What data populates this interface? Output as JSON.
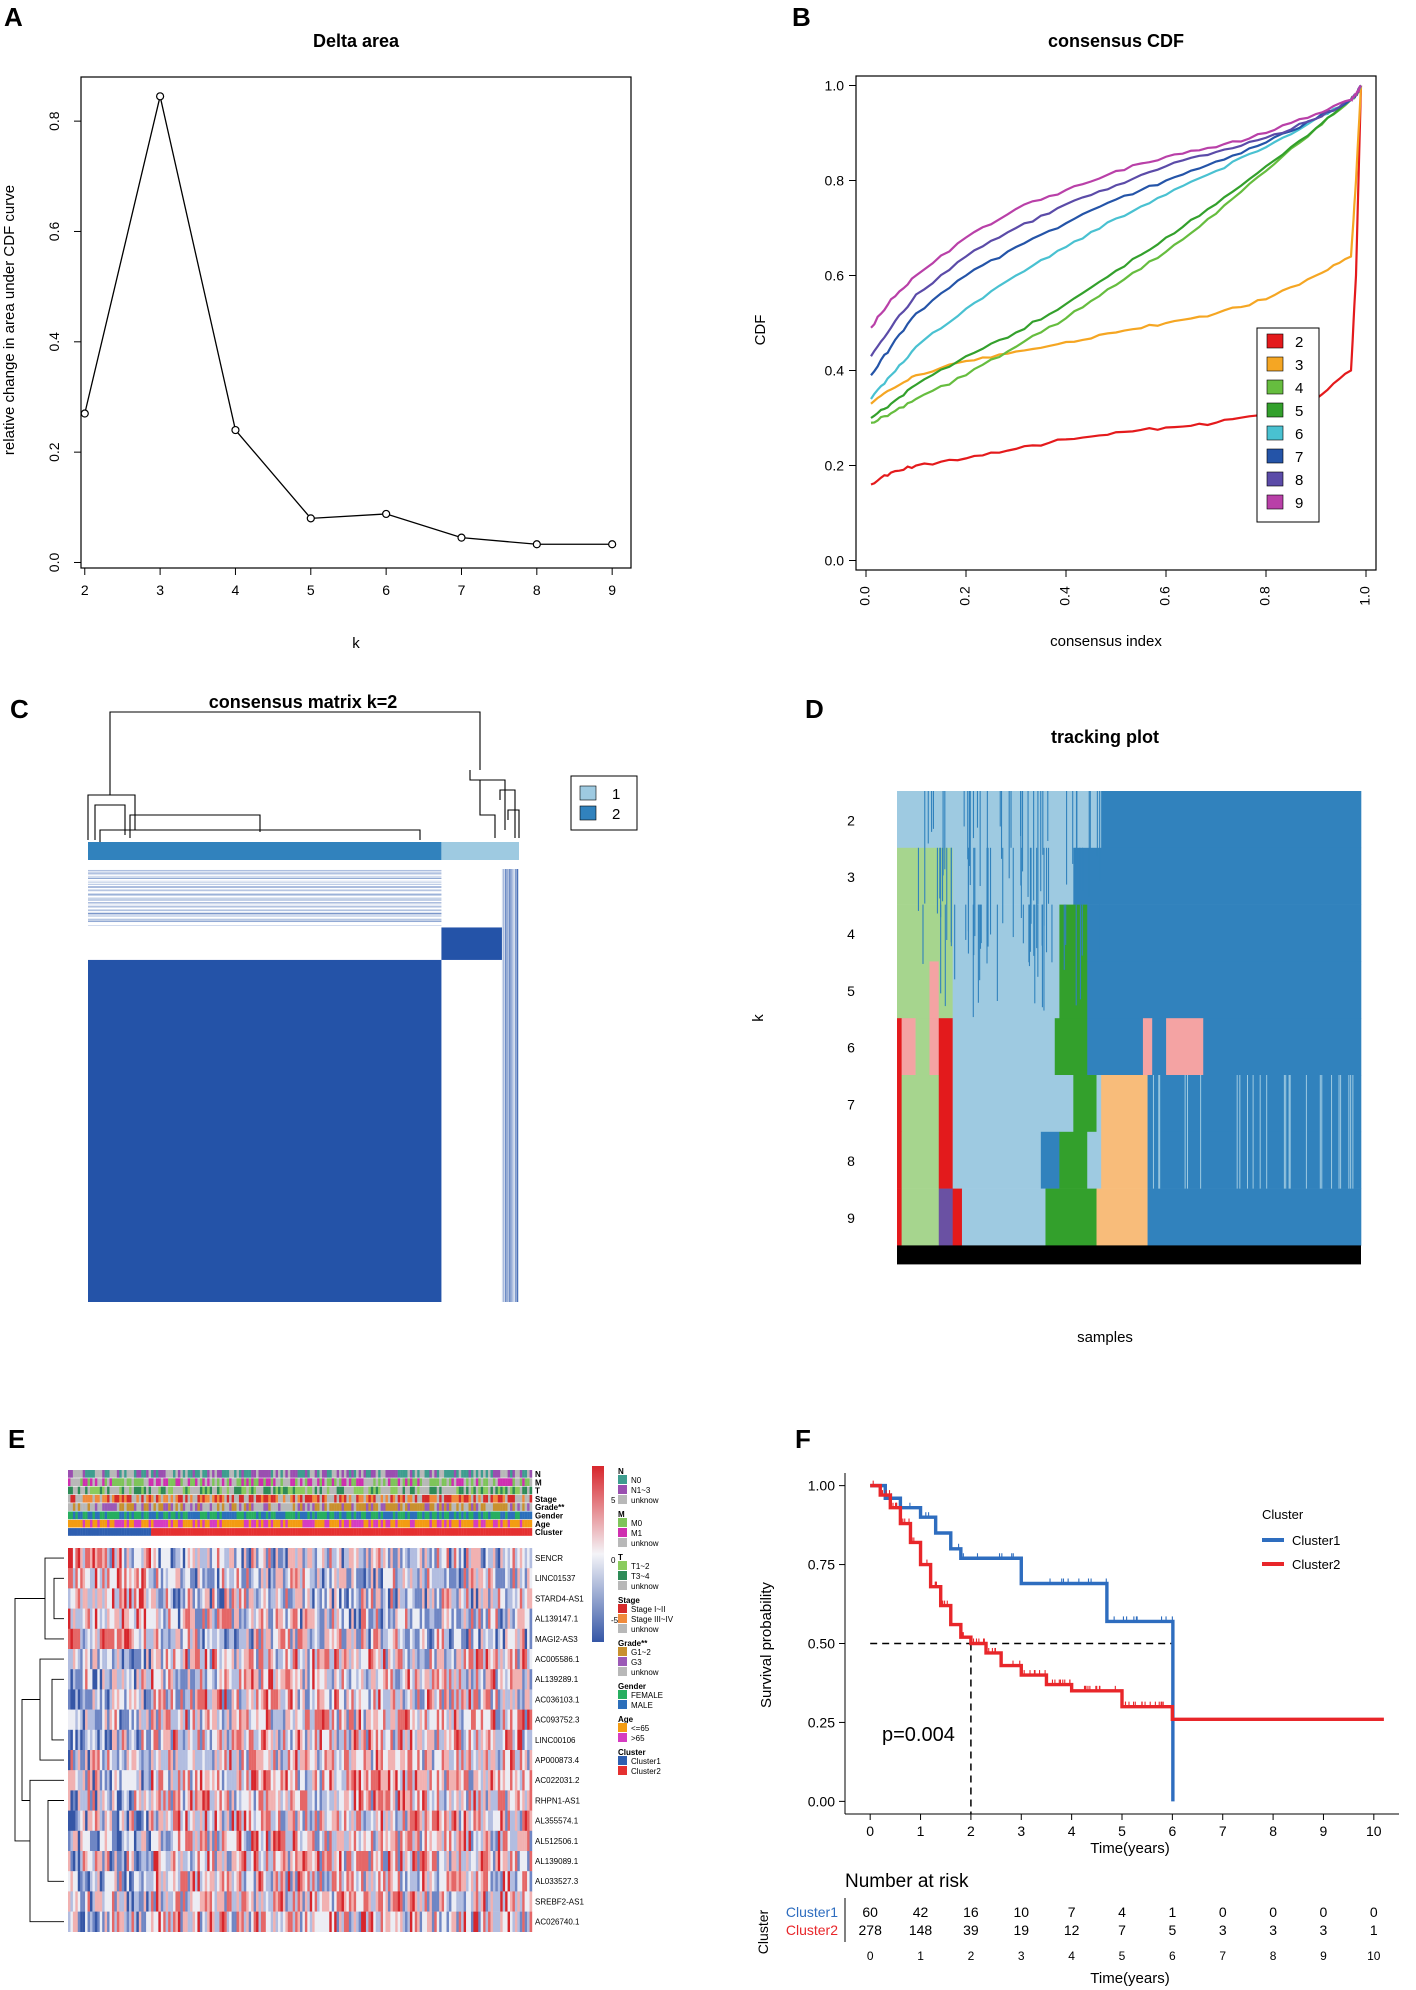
{
  "panel_letters": [
    "A",
    "B",
    "C",
    "D",
    "E",
    "F"
  ],
  "chart_data": [
    {
      "panel": "A",
      "type": "line",
      "title": "Delta area",
      "xlabel": "k",
      "ylabel": "relative change in area under CDF curve",
      "x": [
        2,
        3,
        4,
        5,
        6,
        7,
        8,
        9
      ],
      "values": [
        0.27,
        0.845,
        0.24,
        0.08,
        0.088,
        0.045,
        0.033,
        0.033
      ],
      "xticks": [
        "2",
        "3",
        "4",
        "5",
        "6",
        "7",
        "8",
        "9"
      ],
      "yticks": [
        "0.0",
        "0.2",
        "0.4",
        "0.6",
        "0.8"
      ],
      "xlim": [
        1.95,
        9.25
      ],
      "ylim": [
        -0.01,
        0.88
      ]
    },
    {
      "panel": "B",
      "type": "line",
      "title": "consensus CDF",
      "xlabel": "consensus index",
      "ylabel": "CDF",
      "xticks": [
        "0.0",
        "0.2",
        "0.4",
        "0.6",
        "0.8",
        "1.0"
      ],
      "yticks": [
        "0.0",
        "0.2",
        "0.4",
        "0.6",
        "0.8",
        "1.0"
      ],
      "xlim": [
        -0.02,
        1.02
      ],
      "ylim": [
        -0.02,
        1.02
      ],
      "x": [
        0.01,
        0.05,
        0.1,
        0.2,
        0.3,
        0.4,
        0.5,
        0.6,
        0.7,
        0.8,
        0.9,
        0.97,
        0.98,
        0.99
      ],
      "legend_labels": [
        "2",
        "3",
        "4",
        "5",
        "6",
        "7",
        "8",
        "9"
      ],
      "series": [
        {
          "name": "2",
          "color": "#e41a1c",
          "values": [
            0.16,
            0.185,
            0.2,
            0.215,
            0.235,
            0.255,
            0.27,
            0.28,
            0.29,
            0.31,
            0.34,
            0.4,
            0.6,
            1.0
          ]
        },
        {
          "name": "3",
          "color": "#f5a623",
          "values": [
            0.33,
            0.36,
            0.39,
            0.42,
            0.44,
            0.46,
            0.48,
            0.5,
            0.52,
            0.55,
            0.6,
            0.64,
            0.8,
            1.0
          ]
        },
        {
          "name": "4",
          "color": "#66bd3f",
          "values": [
            0.29,
            0.31,
            0.34,
            0.39,
            0.45,
            0.51,
            0.58,
            0.65,
            0.73,
            0.82,
            0.91,
            0.97,
            0.98,
            1.0
          ]
        },
        {
          "name": "5",
          "color": "#33a02c",
          "values": [
            0.3,
            0.33,
            0.37,
            0.43,
            0.48,
            0.54,
            0.61,
            0.68,
            0.75,
            0.83,
            0.91,
            0.97,
            0.98,
            1.0
          ]
        },
        {
          "name": "6",
          "color": "#49c1d1",
          "values": [
            0.34,
            0.39,
            0.45,
            0.53,
            0.6,
            0.66,
            0.72,
            0.77,
            0.82,
            0.87,
            0.93,
            0.97,
            0.98,
            1.0
          ]
        },
        {
          "name": "7",
          "color": "#2454a8",
          "values": [
            0.39,
            0.45,
            0.52,
            0.6,
            0.66,
            0.71,
            0.76,
            0.8,
            0.84,
            0.88,
            0.93,
            0.97,
            0.98,
            1.0
          ]
        },
        {
          "name": "8",
          "color": "#5b4ba8",
          "values": [
            0.43,
            0.49,
            0.56,
            0.64,
            0.7,
            0.75,
            0.79,
            0.83,
            0.86,
            0.89,
            0.93,
            0.97,
            0.98,
            1.0
          ]
        },
        {
          "name": "9",
          "color": "#b940a8",
          "values": [
            0.49,
            0.55,
            0.6,
            0.68,
            0.74,
            0.78,
            0.82,
            0.85,
            0.87,
            0.9,
            0.94,
            0.97,
            0.98,
            1.0
          ]
        }
      ]
    },
    {
      "panel": "C",
      "type": "heatmap",
      "title": "consensus matrix k=2",
      "legend_labels": [
        "1",
        "2"
      ],
      "cluster_fractions": [
        0.82,
        0.18
      ],
      "colors": [
        "#9ecae1",
        "#3182bd",
        "#2453a8"
      ]
    },
    {
      "panel": "D",
      "type": "heatmap",
      "title": "tracking plot",
      "xlabel": "samples",
      "ylabel": "k",
      "k_values": [
        "2",
        "3",
        "4",
        "5",
        "6",
        "7",
        "8",
        "9"
      ],
      "colors": {
        "c1": "#9ecae1",
        "c2": "#3182bd",
        "c3": "#a6d58e",
        "c4": "#33a02c",
        "c5": "#f4a3a3",
        "c6": "#e31a1c",
        "c7": "#f8bc7a",
        "c8": "#6a51a3"
      }
    },
    {
      "panel": "E",
      "type": "heatmap",
      "annotation_rows": [
        "N",
        "M",
        "T",
        "Stage",
        "Grade**",
        "Gender",
        "Age",
        "Cluster"
      ],
      "genes": [
        "SENCR",
        "LINC01537",
        "STARD4-AS1",
        "AL139147.1",
        "MAGI2-AS3",
        "AC005586.1",
        "AL139289.1",
        "AC036103.1",
        "AC093752.3",
        "LINC00106",
        "AP000873.4",
        "AC022031.2",
        "RHPN1-AS1",
        "AL355574.1",
        "AL512506.1",
        "AL139089.1",
        "AL033527.3",
        "SREBF2-AS1",
        "AC026740.1"
      ],
      "scale_ticks": [
        "5",
        "0",
        "-5"
      ],
      "legend_groups": [
        {
          "title": "N",
          "items": [
            {
              "label": "N0",
              "color": "#3e9d8f"
            },
            {
              "label": "N1~3",
              "color": "#9a4fb0"
            },
            {
              "label": "unknow",
              "color": "#b8b8b8"
            }
          ]
        },
        {
          "title": "M",
          "items": [
            {
              "label": "M0",
              "color": "#7ec45a"
            },
            {
              "label": "M1",
              "color": "#cf2fb0"
            },
            {
              "label": "unknow",
              "color": "#b8b8b8"
            }
          ]
        },
        {
          "title": "T",
          "items": [
            {
              "label": "T1~2",
              "color": "#8acb5e"
            },
            {
              "label": "T3~4",
              "color": "#2e8b57"
            },
            {
              "label": "unknow",
              "color": "#b8b8b8"
            }
          ]
        },
        {
          "title": "Stage",
          "items": [
            {
              "label": "Stage I~II",
              "color": "#d62b2b"
            },
            {
              "label": "Stage III~IV",
              "color": "#f08a3c"
            },
            {
              "label": "unknow",
              "color": "#b8b8b8"
            }
          ]
        },
        {
          "title": "Grade**",
          "items": [
            {
              "label": "G1~2",
              "color": "#c8902e"
            },
            {
              "label": "G3",
              "color": "#9b59b6"
            },
            {
              "label": "unknow",
              "color": "#b8b8b8"
            }
          ]
        },
        {
          "title": "Gender",
          "items": [
            {
              "label": "FEMALE",
              "color": "#27ae60"
            },
            {
              "label": "MALE",
              "color": "#2c6fbb"
            }
          ]
        },
        {
          "title": "Age",
          "items": [
            {
              "label": "<=65",
              "color": "#f39c12"
            },
            {
              "label": ">65",
              "color": "#d63cc1"
            }
          ]
        },
        {
          "title": "Cluster",
          "items": [
            {
              "label": "Cluster1",
              "color": "#2e5fb0"
            },
            {
              "label": "Cluster2",
              "color": "#e53030"
            }
          ]
        }
      ]
    },
    {
      "panel": "F",
      "type": "line",
      "xlabel": "Time(years)",
      "ylabel": "Survival probability",
      "xticks": [
        "0",
        "1",
        "2",
        "3",
        "4",
        "5",
        "6",
        "7",
        "8",
        "9",
        "10"
      ],
      "yticks": [
        "0.00",
        "0.25",
        "0.50",
        "0.75",
        "1.00"
      ],
      "xlim": [
        -0.5,
        10.5
      ],
      "ylim": [
        -0.04,
        1.04
      ],
      "legend_title": "Cluster",
      "pvalue": "p=0.004",
      "median_survival": 2,
      "series": [
        {
          "name": "Cluster1",
          "color": "#2e6dbf",
          "x": [
            0,
            0.3,
            0.6,
            1.0,
            1.3,
            1.6,
            1.8,
            3.0,
            4.7,
            6.0,
            6.01
          ],
          "values": [
            1.0,
            0.96,
            0.93,
            0.9,
            0.85,
            0.8,
            0.77,
            0.69,
            0.57,
            0.57,
            0.0
          ]
        },
        {
          "name": "Cluster2",
          "color": "#e8262a",
          "x": [
            0,
            0.2,
            0.4,
            0.6,
            0.8,
            1.0,
            1.2,
            1.4,
            1.6,
            1.8,
            2.0,
            2.3,
            2.6,
            3.0,
            3.5,
            4.0,
            5.0,
            6.0,
            10.2
          ],
          "values": [
            1.0,
            0.97,
            0.93,
            0.88,
            0.82,
            0.75,
            0.68,
            0.62,
            0.56,
            0.52,
            0.5,
            0.47,
            0.43,
            0.4,
            0.37,
            0.35,
            0.3,
            0.26,
            0.26
          ]
        }
      ],
      "risk_table": {
        "title": "Number at risk",
        "row_axis_label": "Cluster",
        "rows": [
          {
            "name": "Cluster1",
            "color": "#2e6dbf",
            "counts": [
              "60",
              "42",
              "16",
              "10",
              "7",
              "4",
              "1",
              "0",
              "0",
              "0",
              "0"
            ]
          },
          {
            "name": "Cluster2",
            "color": "#e8262a",
            "counts": [
              "278",
              "148",
              "39",
              "19",
              "12",
              "7",
              "5",
              "3",
              "3",
              "3",
              "1"
            ]
          }
        ],
        "xticks": [
          "0",
          "1",
          "2",
          "3",
          "4",
          "5",
          "6",
          "7",
          "8",
          "9",
          "10"
        ],
        "xlabel": "Time(years)"
      }
    }
  ]
}
